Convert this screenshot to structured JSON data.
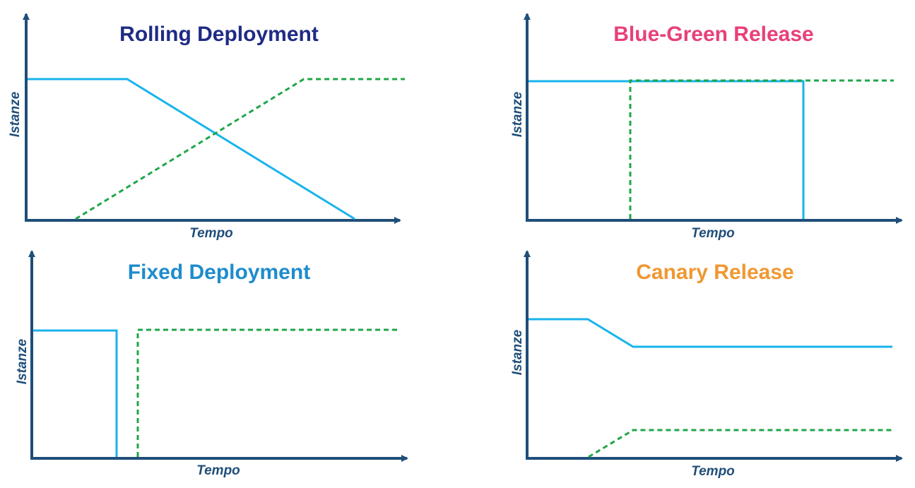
{
  "axis_color": "#1f4e79",
  "old_version_color": "#19b3ec",
  "new_version_color": "#1fa64a",
  "panels": [
    {
      "title": "Rolling Deployment",
      "title_color": "#1e2b84",
      "x_label": "Tempo",
      "y_label": "Istanze"
    },
    {
      "title": "Blue-Green Release",
      "title_color": "#e8407a",
      "x_label": "Tempo",
      "y_label": "Istanze"
    },
    {
      "title": "Fixed Deployment",
      "title_color": "#1e8ccc",
      "x_label": "Tempo",
      "y_label": "Istanze"
    },
    {
      "title": "Canary Release",
      "title_color": "#f09833",
      "x_label": "Tempo",
      "y_label": "Istanze"
    }
  ]
}
